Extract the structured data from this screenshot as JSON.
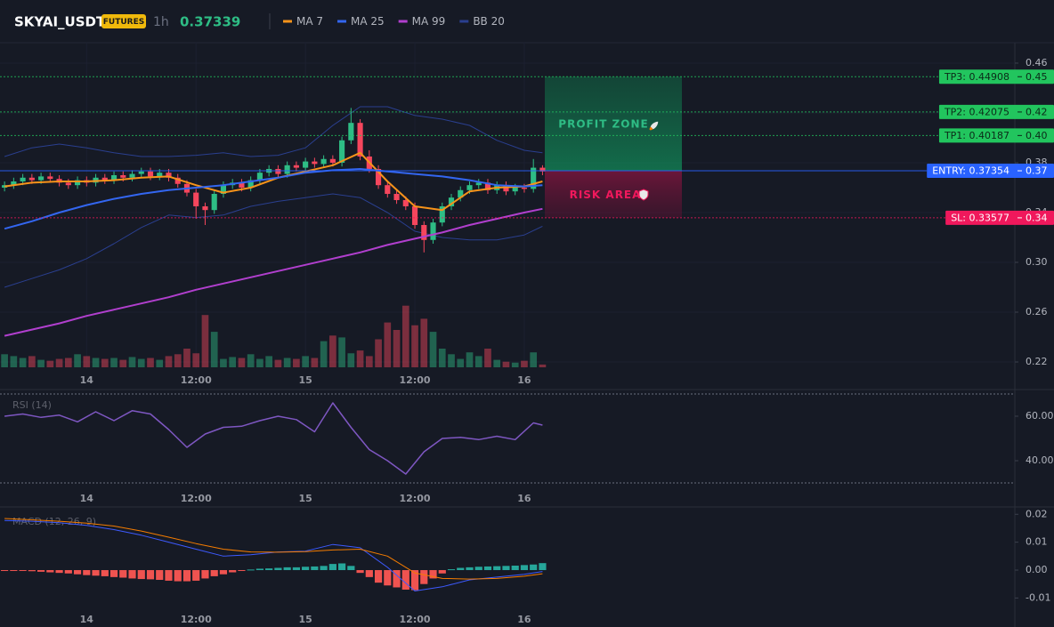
{
  "header": {
    "symbol": "SKYAI_USDT",
    "badge": "FUTURES",
    "interval": "1h",
    "last_price": 0.37339
  },
  "chart_data": [
    {
      "type": "candlestick",
      "xlim": [
        -9.5,
        101.8
      ],
      "xticks": [
        {
          "value": 0,
          "label": "14"
        },
        {
          "value": 12,
          "label": "12:00"
        },
        {
          "value": 24,
          "label": "15"
        },
        {
          "value": 36,
          "label": "12:00"
        },
        {
          "value": 48,
          "label": "16"
        }
      ],
      "ylim": [
        0.2143,
        0.4764
      ],
      "yticks": [
        0.22,
        0.26,
        {
          "value": 0.3,
          "label": "0.30"
        },
        0.34,
        0.38,
        0.42,
        0.46
      ],
      "grid": true,
      "up_color": "#2ebd85",
      "down_color": "#f6465d",
      "x": [
        -9,
        -8,
        -7,
        -6,
        -5,
        -4,
        -3,
        -2,
        -1,
        0,
        1,
        2,
        3,
        4,
        5,
        6,
        7,
        8,
        9,
        10,
        11,
        12,
        13,
        14,
        15,
        16,
        17,
        18,
        19,
        20,
        21,
        22,
        23,
        24,
        25,
        26,
        27,
        28,
        29,
        30,
        31,
        32,
        33,
        34,
        35,
        36,
        37,
        38,
        39,
        40,
        41,
        42,
        43,
        44,
        45,
        46,
        47,
        48,
        49,
        50
      ],
      "open": [
        0.36,
        0.362,
        0.365,
        0.368,
        0.366,
        0.369,
        0.367,
        0.364,
        0.362,
        0.366,
        0.364,
        0.368,
        0.366,
        0.37,
        0.368,
        0.371,
        0.373,
        0.369,
        0.372,
        0.368,
        0.363,
        0.356,
        0.345,
        0.342,
        0.355,
        0.362,
        0.364,
        0.36,
        0.366,
        0.372,
        0.375,
        0.371,
        0.378,
        0.376,
        0.381,
        0.379,
        0.383,
        0.38,
        0.398,
        0.412,
        0.385,
        0.375,
        0.362,
        0.355,
        0.35,
        0.345,
        0.33,
        0.318,
        0.332,
        0.345,
        0.352,
        0.358,
        0.362,
        0.364,
        0.358,
        0.362,
        0.357,
        0.36,
        0.359,
        0.376
      ],
      "high": [
        0.365,
        0.368,
        0.371,
        0.371,
        0.372,
        0.372,
        0.37,
        0.367,
        0.369,
        0.369,
        0.371,
        0.371,
        0.373,
        0.373,
        0.374,
        0.376,
        0.376,
        0.375,
        0.375,
        0.371,
        0.366,
        0.359,
        0.348,
        0.358,
        0.365,
        0.367,
        0.367,
        0.369,
        0.375,
        0.378,
        0.378,
        0.381,
        0.381,
        0.384,
        0.384,
        0.386,
        0.386,
        0.401,
        0.424,
        0.415,
        0.39,
        0.378,
        0.365,
        0.358,
        0.353,
        0.348,
        0.333,
        0.335,
        0.348,
        0.355,
        0.361,
        0.365,
        0.367,
        0.367,
        0.365,
        0.365,
        0.363,
        0.363,
        0.383,
        0.378
      ],
      "low": [
        0.357,
        0.359,
        0.362,
        0.363,
        0.363,
        0.364,
        0.361,
        0.359,
        0.359,
        0.361,
        0.361,
        0.363,
        0.363,
        0.365,
        0.365,
        0.368,
        0.366,
        0.366,
        0.365,
        0.36,
        0.353,
        0.335,
        0.33,
        0.339,
        0.352,
        0.359,
        0.357,
        0.357,
        0.363,
        0.369,
        0.368,
        0.368,
        0.373,
        0.373,
        0.376,
        0.376,
        0.377,
        0.377,
        0.395,
        0.382,
        0.372,
        0.359,
        0.352,
        0.347,
        0.342,
        0.327,
        0.308,
        0.315,
        0.329,
        0.342,
        0.349,
        0.355,
        0.359,
        0.355,
        0.355,
        0.354,
        0.354,
        0.356,
        0.356,
        0.37
      ],
      "close": [
        0.362,
        0.365,
        0.368,
        0.366,
        0.369,
        0.367,
        0.364,
        0.362,
        0.366,
        0.364,
        0.368,
        0.366,
        0.37,
        0.368,
        0.371,
        0.373,
        0.369,
        0.372,
        0.368,
        0.363,
        0.356,
        0.345,
        0.342,
        0.355,
        0.362,
        0.364,
        0.36,
        0.366,
        0.372,
        0.375,
        0.371,
        0.378,
        0.376,
        0.381,
        0.379,
        0.383,
        0.38,
        0.398,
        0.412,
        0.385,
        0.375,
        0.362,
        0.355,
        0.35,
        0.345,
        0.33,
        0.318,
        0.332,
        0.345,
        0.352,
        0.358,
        0.362,
        0.364,
        0.358,
        0.362,
        0.357,
        0.36,
        0.359,
        0.376,
        0.373
      ],
      "volume": [
        14,
        12,
        10,
        12,
        8,
        7,
        9,
        10,
        14,
        12,
        10,
        9,
        10,
        8,
        11,
        9,
        10,
        8,
        12,
        14,
        20,
        15,
        56,
        38,
        9,
        11,
        10,
        14,
        9,
        12,
        8,
        10,
        9,
        12,
        10,
        28,
        34,
        32,
        15,
        18,
        12,
        30,
        48,
        40,
        66,
        45,
        52,
        38,
        20,
        14,
        9,
        16,
        12,
        20,
        8,
        6,
        5,
        7,
        16,
        3
      ],
      "overlays": [
        {
          "name": "MA 7",
          "color": "#f7931a",
          "x": [
            -9,
            -6,
            -3,
            0,
            3,
            6,
            9,
            12,
            15,
            18,
            21,
            24,
            27,
            30,
            33,
            36,
            39,
            42,
            45,
            48,
            50
          ],
          "values": [
            0.361,
            0.364,
            0.365,
            0.365,
            0.366,
            0.368,
            0.369,
            0.362,
            0.356,
            0.36,
            0.368,
            0.373,
            0.378,
            0.388,
            0.365,
            0.345,
            0.342,
            0.357,
            0.36,
            0.361,
            0.365
          ]
        },
        {
          "name": "MA 25",
          "color": "#3366f0",
          "x": [
            -9,
            -6,
            -3,
            0,
            3,
            6,
            9,
            12,
            15,
            18,
            21,
            24,
            27,
            30,
            33,
            36,
            39,
            42,
            45,
            48,
            50
          ],
          "values": [
            0.327,
            0.333,
            0.34,
            0.346,
            0.351,
            0.355,
            0.358,
            0.36,
            0.362,
            0.365,
            0.368,
            0.372,
            0.374,
            0.375,
            0.373,
            0.371,
            0.369,
            0.366,
            0.362,
            0.361,
            0.362
          ]
        },
        {
          "name": "MA 99",
          "color": "#b13fce",
          "x": [
            -9,
            -6,
            -3,
            0,
            3,
            6,
            9,
            12,
            15,
            18,
            21,
            24,
            27,
            30,
            33,
            36,
            39,
            42,
            45,
            48,
            50
          ],
          "values": [
            0.241,
            0.246,
            0.251,
            0.257,
            0.262,
            0.267,
            0.272,
            0.278,
            0.283,
            0.288,
            0.293,
            0.298,
            0.303,
            0.308,
            0.314,
            0.319,
            0.324,
            0.33,
            0.335,
            0.34,
            0.343
          ]
        },
        {
          "name": "BB 20",
          "color": "#2a3f8f",
          "x": [
            -9,
            -6,
            -3,
            0,
            3,
            6,
            9,
            12,
            15,
            18,
            21,
            24,
            27,
            30,
            33,
            36,
            39,
            42,
            45,
            48,
            50
          ],
          "upper": [
            0.385,
            0.392,
            0.395,
            0.392,
            0.388,
            0.385,
            0.385,
            0.386,
            0.388,
            0.385,
            0.386,
            0.392,
            0.41,
            0.425,
            0.425,
            0.418,
            0.415,
            0.41,
            0.398,
            0.39,
            0.388
          ],
          "lower": [
            0.28,
            0.287,
            0.294,
            0.303,
            0.315,
            0.328,
            0.338,
            0.336,
            0.338,
            0.345,
            0.349,
            0.352,
            0.355,
            0.352,
            0.34,
            0.325,
            0.32,
            0.318,
            0.318,
            0.322,
            0.329
          ]
        }
      ],
      "levels": [
        {
          "label": "TP3: 0.44908",
          "value": 0.44908,
          "axis_label": "0.45",
          "color": "#22c55e"
        },
        {
          "label": "TP2: 0.42075",
          "value": 0.42075,
          "axis_label": "0.42",
          "color": "#22c55e"
        },
        {
          "label": "TP1: 0.40187",
          "value": 0.40187,
          "axis_label": "0.40",
          "color": "#22c55e"
        },
        {
          "label": "ENTRY: 0.37354",
          "value": 0.37354,
          "axis_label": "0.37",
          "color": "#2962ff"
        },
        {
          "label": "SL: 0.33577",
          "value": 0.33577,
          "axis_label": "0.34",
          "color": "#f0185c"
        }
      ],
      "profit_label": "PROFIT ZONE",
      "risk_label": "RISK AREA"
    },
    {
      "type": "line",
      "title": "RSI (14)",
      "color": "#7e57c2",
      "xlim": [
        -9.5,
        101.8
      ],
      "xticks": [
        {
          "value": 0,
          "label": "14"
        },
        {
          "value": 12,
          "label": "12:00"
        },
        {
          "value": 24,
          "label": "15"
        },
        {
          "value": 36,
          "label": "12:00"
        },
        {
          "value": 48,
          "label": "16"
        }
      ],
      "ylim": [
        28,
        71.2
      ],
      "yticks": [
        {
          "value": 60,
          "label": "60.00"
        },
        {
          "value": 40,
          "label": "40.00"
        }
      ],
      "levels": [
        70,
        30
      ],
      "x": [
        -9,
        -7,
        -5,
        -3,
        -1,
        1,
        3,
        5,
        7,
        9,
        11,
        13,
        15,
        17,
        19,
        21,
        23,
        25,
        27,
        29,
        31,
        33,
        35,
        37,
        39,
        41,
        43,
        45,
        47,
        49,
        50
      ],
      "values": [
        60,
        61,
        59.5,
        60.5,
        57.5,
        62,
        58,
        62.5,
        61,
        54,
        46,
        52,
        55,
        55.5,
        58,
        60,
        58.5,
        53,
        66,
        55,
        45,
        40,
        34,
        44,
        50,
        50.5,
        49.5,
        51,
        49.5,
        57,
        56
      ]
    },
    {
      "type": "bar",
      "title": "MACD (12, 26, 9)",
      "xlim": [
        -9.5,
        101.8
      ],
      "xticks": [
        {
          "value": 0,
          "label": "14"
        },
        {
          "value": 12,
          "label": "12:00"
        },
        {
          "value": 24,
          "label": "15"
        },
        {
          "value": 36,
          "label": "12:00"
        },
        {
          "value": 48,
          "label": "16"
        }
      ],
      "ylim": [
        -0.0137,
        0.022
      ],
      "yticks": [
        0.02,
        0.01,
        {
          "value": 0,
          "label": "0.00"
        },
        -0.01
      ],
      "up_color": "#26a69a",
      "down_color": "#ef5350",
      "x": [
        -9,
        -8,
        -7,
        -6,
        -5,
        -4,
        -3,
        -2,
        -1,
        0,
        1,
        2,
        3,
        4,
        5,
        6,
        7,
        8,
        9,
        10,
        11,
        12,
        13,
        14,
        15,
        16,
        17,
        18,
        19,
        20,
        21,
        22,
        23,
        24,
        25,
        26,
        27,
        28,
        29,
        30,
        31,
        32,
        33,
        34,
        35,
        36,
        37,
        38,
        39,
        40,
        41,
        42,
        43,
        44,
        45,
        46,
        47,
        48,
        49,
        50
      ],
      "values": [
        -0.0002,
        -0.0003,
        -0.0003,
        -0.0004,
        -0.0006,
        -0.0008,
        -0.001,
        -0.0012,
        -0.0015,
        -0.0018,
        -0.002,
        -0.0022,
        -0.0025,
        -0.0027,
        -0.003,
        -0.0032,
        -0.0033,
        -0.0035,
        -0.0038,
        -0.004,
        -0.004,
        -0.0038,
        -0.003,
        -0.0022,
        -0.0015,
        -0.0008,
        -0.0003,
        0.0002,
        0.0005,
        0.0006,
        0.0008,
        0.001,
        0.001,
        0.0012,
        0.0013,
        0.0015,
        0.0022,
        0.0024,
        0.0015,
        -0.001,
        -0.0025,
        -0.0045,
        -0.0055,
        -0.0062,
        -0.007,
        -0.0072,
        -0.005,
        -0.003,
        -0.0012,
        0.0003,
        0.0008,
        0.001,
        0.0012,
        0.0013,
        0.0014,
        0.0015,
        0.0016,
        0.0018,
        0.002,
        0.0025
      ],
      "series": [
        {
          "color": "#3d5afe",
          "x": [
            -9,
            -6,
            -3,
            0,
            3,
            6,
            9,
            12,
            15,
            18,
            21,
            24,
            27,
            30,
            33,
            36,
            39,
            42,
            45,
            48,
            50
          ],
          "values": [
            0.0178,
            0.0175,
            0.017,
            0.016,
            0.0145,
            0.0125,
            0.01,
            0.0075,
            0.005,
            0.0055,
            0.0065,
            0.0068,
            0.0092,
            0.008,
            0.001,
            -0.0075,
            -0.006,
            -0.0035,
            -0.0025,
            -0.0015,
            -0.0005
          ]
        },
        {
          "color": "#f57c00",
          "x": [
            -9,
            -6,
            -3,
            0,
            3,
            6,
            9,
            12,
            15,
            18,
            21,
            24,
            27,
            30,
            33,
            36,
            39,
            42,
            45,
            48,
            50
          ],
          "values": [
            0.0185,
            0.018,
            0.0175,
            0.0168,
            0.0158,
            0.014,
            0.0118,
            0.0095,
            0.0075,
            0.0065,
            0.0064,
            0.0066,
            0.0072,
            0.0075,
            0.005,
            -0.001,
            -0.003,
            -0.0032,
            -0.003,
            -0.0022,
            -0.0013
          ]
        }
      ]
    }
  ]
}
